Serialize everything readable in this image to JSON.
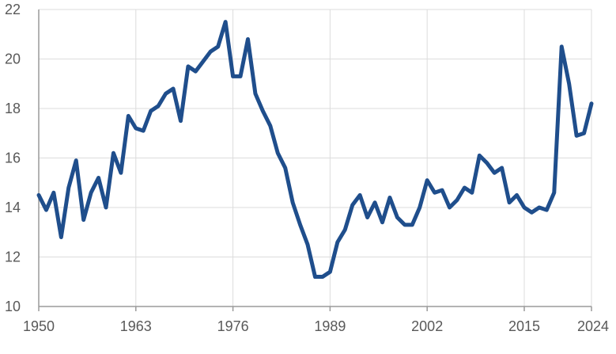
{
  "chart_data": {
    "type": "line",
    "title": "",
    "xlabel": "",
    "ylabel": "",
    "xlim": [
      1950,
      2024
    ],
    "ylim": [
      10,
      22
    ],
    "x_ticks": [
      1950,
      1963,
      1976,
      1989,
      2002,
      2015,
      2024
    ],
    "y_ticks": [
      10,
      12,
      14,
      16,
      18,
      20,
      22
    ],
    "grid": true,
    "legend": "none",
    "series": [
      {
        "color": "#1f4e8c",
        "x": [
          1950,
          1951,
          1952,
          1953,
          1954,
          1955,
          1956,
          1957,
          1958,
          1959,
          1960,
          1961,
          1962,
          1963,
          1964,
          1965,
          1966,
          1967,
          1968,
          1969,
          1970,
          1971,
          1972,
          1973,
          1974,
          1975,
          1976,
          1977,
          1978,
          1979,
          1980,
          1981,
          1982,
          1983,
          1984,
          1985,
          1986,
          1987,
          1988,
          1989,
          1990,
          1991,
          1992,
          1993,
          1994,
          1995,
          1996,
          1997,
          1998,
          1999,
          2000,
          2001,
          2002,
          2003,
          2004,
          2005,
          2006,
          2007,
          2008,
          2009,
          2010,
          2011,
          2012,
          2013,
          2014,
          2015,
          2016,
          2017,
          2018,
          2019,
          2020,
          2021,
          2022,
          2023,
          2024
        ],
        "values": [
          14.5,
          13.9,
          14.6,
          12.8,
          14.8,
          15.9,
          13.5,
          14.6,
          15.2,
          14.0,
          16.2,
          15.4,
          17.7,
          17.2,
          17.1,
          17.9,
          18.1,
          18.6,
          18.8,
          17.5,
          19.7,
          19.5,
          19.9,
          20.3,
          20.5,
          21.5,
          19.3,
          19.3,
          20.8,
          18.6,
          17.9,
          17.3,
          16.2,
          15.6,
          14.2,
          13.3,
          12.5,
          11.2,
          11.2,
          11.4,
          12.6,
          13.1,
          14.1,
          14.5,
          13.6,
          14.2,
          13.4,
          14.4,
          13.6,
          13.3,
          13.3,
          14.0,
          15.1,
          14.6,
          14.7,
          14.0,
          14.3,
          14.8,
          14.6,
          16.1,
          15.8,
          15.4,
          15.6,
          14.2,
          14.5,
          14.0,
          13.8,
          14.0,
          13.9,
          14.6,
          20.5,
          19.0,
          16.9,
          17.0,
          18.2
        ]
      }
    ]
  }
}
